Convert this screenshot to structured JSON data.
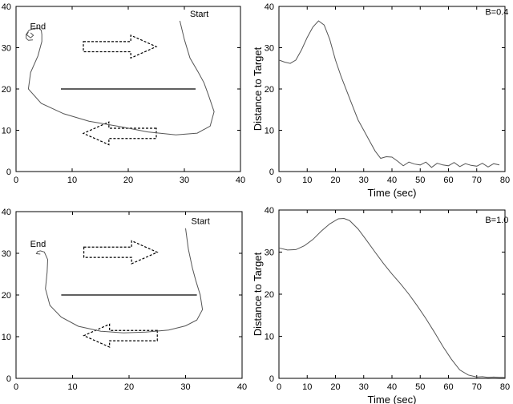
{
  "chart_data": [
    {
      "type": "line",
      "panel": "top-left",
      "xlim": [
        0,
        40
      ],
      "ylim": [
        0,
        40
      ],
      "xticks": [
        0,
        10,
        20,
        30,
        40
      ],
      "yticks": [
        0,
        10,
        20,
        30,
        40
      ],
      "grid": false,
      "annotations": [
        {
          "text": "End",
          "x": 2.5,
          "y": 34.5
        },
        {
          "text": "Start",
          "x": 31,
          "y": 37.5
        }
      ],
      "obstacle": {
        "x": [
          8,
          32
        ],
        "y": [
          20,
          20
        ]
      },
      "arrows": [
        {
          "direction": "right",
          "x": [
            12,
            25
          ],
          "y": [
            27.5,
            33
          ]
        },
        {
          "direction": "left",
          "x": [
            12,
            25
          ],
          "y": [
            6.5,
            12
          ]
        }
      ],
      "series": [
        {
          "x": [
            29.2,
            30,
            31,
            32.5,
            33.5,
            34.3,
            35.3,
            34.6,
            32.3,
            28.5,
            23.5,
            18.5,
            13,
            8.5,
            4.5,
            2.2,
            2.6,
            3.9,
            4.6,
            4.6,
            4.5,
            4.1,
            3.2,
            2.3,
            1.8,
            1.8,
            2.2,
            3
          ],
          "y": [
            36.5,
            32,
            27.5,
            24,
            21.5,
            18.5,
            14.5,
            11,
            9.3,
            8.9,
            9.6,
            10.9,
            12.2,
            14,
            16.5,
            20,
            24,
            28,
            31.5,
            33.2,
            34.2,
            34.7,
            34.7,
            34.2,
            33.2,
            32.3,
            31.8,
            31.9
          ]
        },
        {
          "x": [
            2.6,
            3.1,
            2.6,
            1.9,
            2.2
          ],
          "y": [
            33.6,
            33,
            32.4,
            33.1,
            33.8
          ]
        }
      ]
    },
    {
      "type": "line",
      "panel": "top-right",
      "xlabel": "Time (sec)",
      "ylabel": "Distance to Target",
      "xlim": [
        0,
        80
      ],
      "ylim": [
        0,
        40
      ],
      "xticks": [
        0,
        10,
        20,
        30,
        40,
        50,
        60,
        70,
        80
      ],
      "yticks": [
        0,
        10,
        20,
        30,
        40
      ],
      "grid": false,
      "annotations": [
        {
          "text": "B=0.4",
          "x": 73,
          "y": 38
        }
      ],
      "series": [
        {
          "x": [
            0,
            2,
            4,
            6,
            8,
            10,
            12,
            14,
            16,
            18,
            20,
            22,
            24,
            26,
            28,
            30,
            32,
            34,
            36,
            38,
            40,
            42,
            44,
            46,
            48,
            50,
            52,
            54,
            56,
            58,
            60,
            62,
            64,
            66,
            68,
            70,
            72,
            74,
            76,
            78
          ],
          "y": [
            27,
            26.5,
            26.2,
            27,
            29.5,
            32.5,
            35,
            36.5,
            35.5,
            32,
            27,
            23,
            19.5,
            16,
            12.5,
            10,
            7.5,
            5,
            3.2,
            3.6,
            3.5,
            2.5,
            1.4,
            2.3,
            1.8,
            1.6,
            2.3,
            1,
            2,
            1.6,
            1.4,
            2.2,
            1.2,
            1.9,
            1.5,
            1.3,
            2,
            1.1,
            1.9,
            1.6
          ]
        }
      ]
    },
    {
      "type": "line",
      "panel": "bottom-left",
      "xlim": [
        0,
        40
      ],
      "ylim": [
        0,
        40
      ],
      "xticks": [
        0,
        10,
        20,
        30,
        40
      ],
      "yticks": [
        0,
        10,
        20,
        30,
        40
      ],
      "grid": false,
      "annotations": [
        {
          "text": "End",
          "x": 2.5,
          "y": 31.5
        },
        {
          "text": "Start",
          "x": 31,
          "y": 37
        }
      ],
      "obstacle": {
        "x": [
          8,
          32
        ],
        "y": [
          20,
          20
        ]
      },
      "arrows": [
        {
          "direction": "right",
          "x": [
            12,
            25
          ],
          "y": [
            27.5,
            33
          ]
        },
        {
          "direction": "left",
          "x": [
            12,
            25
          ],
          "y": [
            7.5,
            13
          ]
        }
      ],
      "series": [
        {
          "x": [
            30,
            30.5,
            31.2,
            31.8,
            32.6,
            33,
            32,
            30,
            27,
            23,
            19,
            15,
            11,
            8,
            6,
            5.2,
            5.5,
            5.6,
            5,
            4.3,
            3.8,
            3.6,
            4.3
          ],
          "y": [
            36,
            31,
            26.5,
            23.5,
            20,
            16.5,
            14,
            12.6,
            11.6,
            11.1,
            10.9,
            11.3,
            12.5,
            14.7,
            17.5,
            21.5,
            25.5,
            28.5,
            30.3,
            30.6,
            30.4,
            29.9,
            29.8
          ]
        }
      ]
    },
    {
      "type": "line",
      "panel": "bottom-right",
      "xlabel": "Time (sec)",
      "ylabel": "Distance to Target",
      "xlim": [
        0,
        80
      ],
      "ylim": [
        0,
        40
      ],
      "xticks": [
        0,
        10,
        20,
        30,
        40,
        50,
        60,
        70,
        80
      ],
      "yticks": [
        0,
        10,
        20,
        30,
        40
      ],
      "grid": false,
      "annotations": [
        {
          "text": "B=1.0",
          "x": 73,
          "y": 37
        }
      ],
      "series": [
        {
          "x": [
            0,
            3,
            6,
            9,
            12,
            15,
            18,
            21,
            23,
            25,
            28,
            31,
            34,
            37,
            40,
            43,
            46,
            49,
            52,
            55,
            58,
            61,
            64,
            67,
            70,
            72,
            74,
            76,
            78,
            80
          ],
          "y": [
            31,
            30.5,
            30.6,
            31.5,
            33,
            35,
            36.7,
            37.9,
            38,
            37.5,
            35.5,
            32.8,
            30,
            27.3,
            24.8,
            22.5,
            20,
            17.2,
            14.2,
            11,
            7.6,
            4.6,
            2,
            0.8,
            0.3,
            0.4,
            0.2,
            0.3,
            0.2,
            0.2
          ]
        }
      ]
    }
  ]
}
